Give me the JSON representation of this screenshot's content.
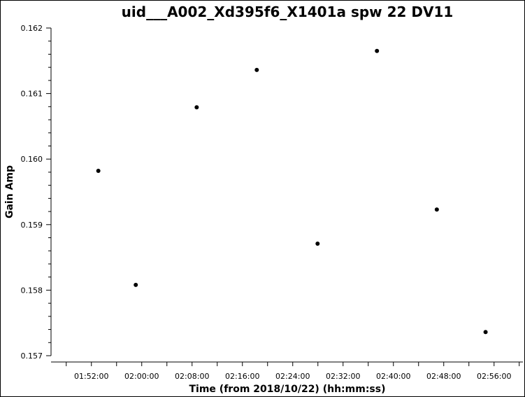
{
  "chart_data": {
    "type": "scatter",
    "title": "uid___A002_Xd395f6_X1401a spw 22 DV11",
    "xlabel": "Time (from 2018/10/22) (hh:mm:ss)",
    "ylabel": "Gain Amp",
    "x_tick_labels": [
      "01:52:00",
      "02:00:00",
      "02:08:00",
      "02:16:00",
      "02:24:00",
      "02:32:00",
      "02:40:00",
      "02:48:00",
      "02:56:00"
    ],
    "y_tick_labels": [
      "0.157",
      "0.158",
      "0.159",
      "0.160",
      "0.161",
      "0.162"
    ],
    "xlim": [
      "01:45:35",
      "03:00:35"
    ],
    "ylim": [
      0.157,
      0.162
    ],
    "grid": false,
    "marker_color": "#000000",
    "points": [
      {
        "x": "01:53:06",
        "y": 0.15982
      },
      {
        "x": "01:59:03",
        "y": 0.15808
      },
      {
        "x": "02:08:44",
        "y": 0.16079
      },
      {
        "x": "02:18:17",
        "y": 0.16136
      },
      {
        "x": "02:27:57",
        "y": 0.15871
      },
      {
        "x": "02:37:23",
        "y": 0.16165
      },
      {
        "x": "02:46:54",
        "y": 0.15923
      },
      {
        "x": "02:54:39",
        "y": 0.15736
      }
    ]
  }
}
